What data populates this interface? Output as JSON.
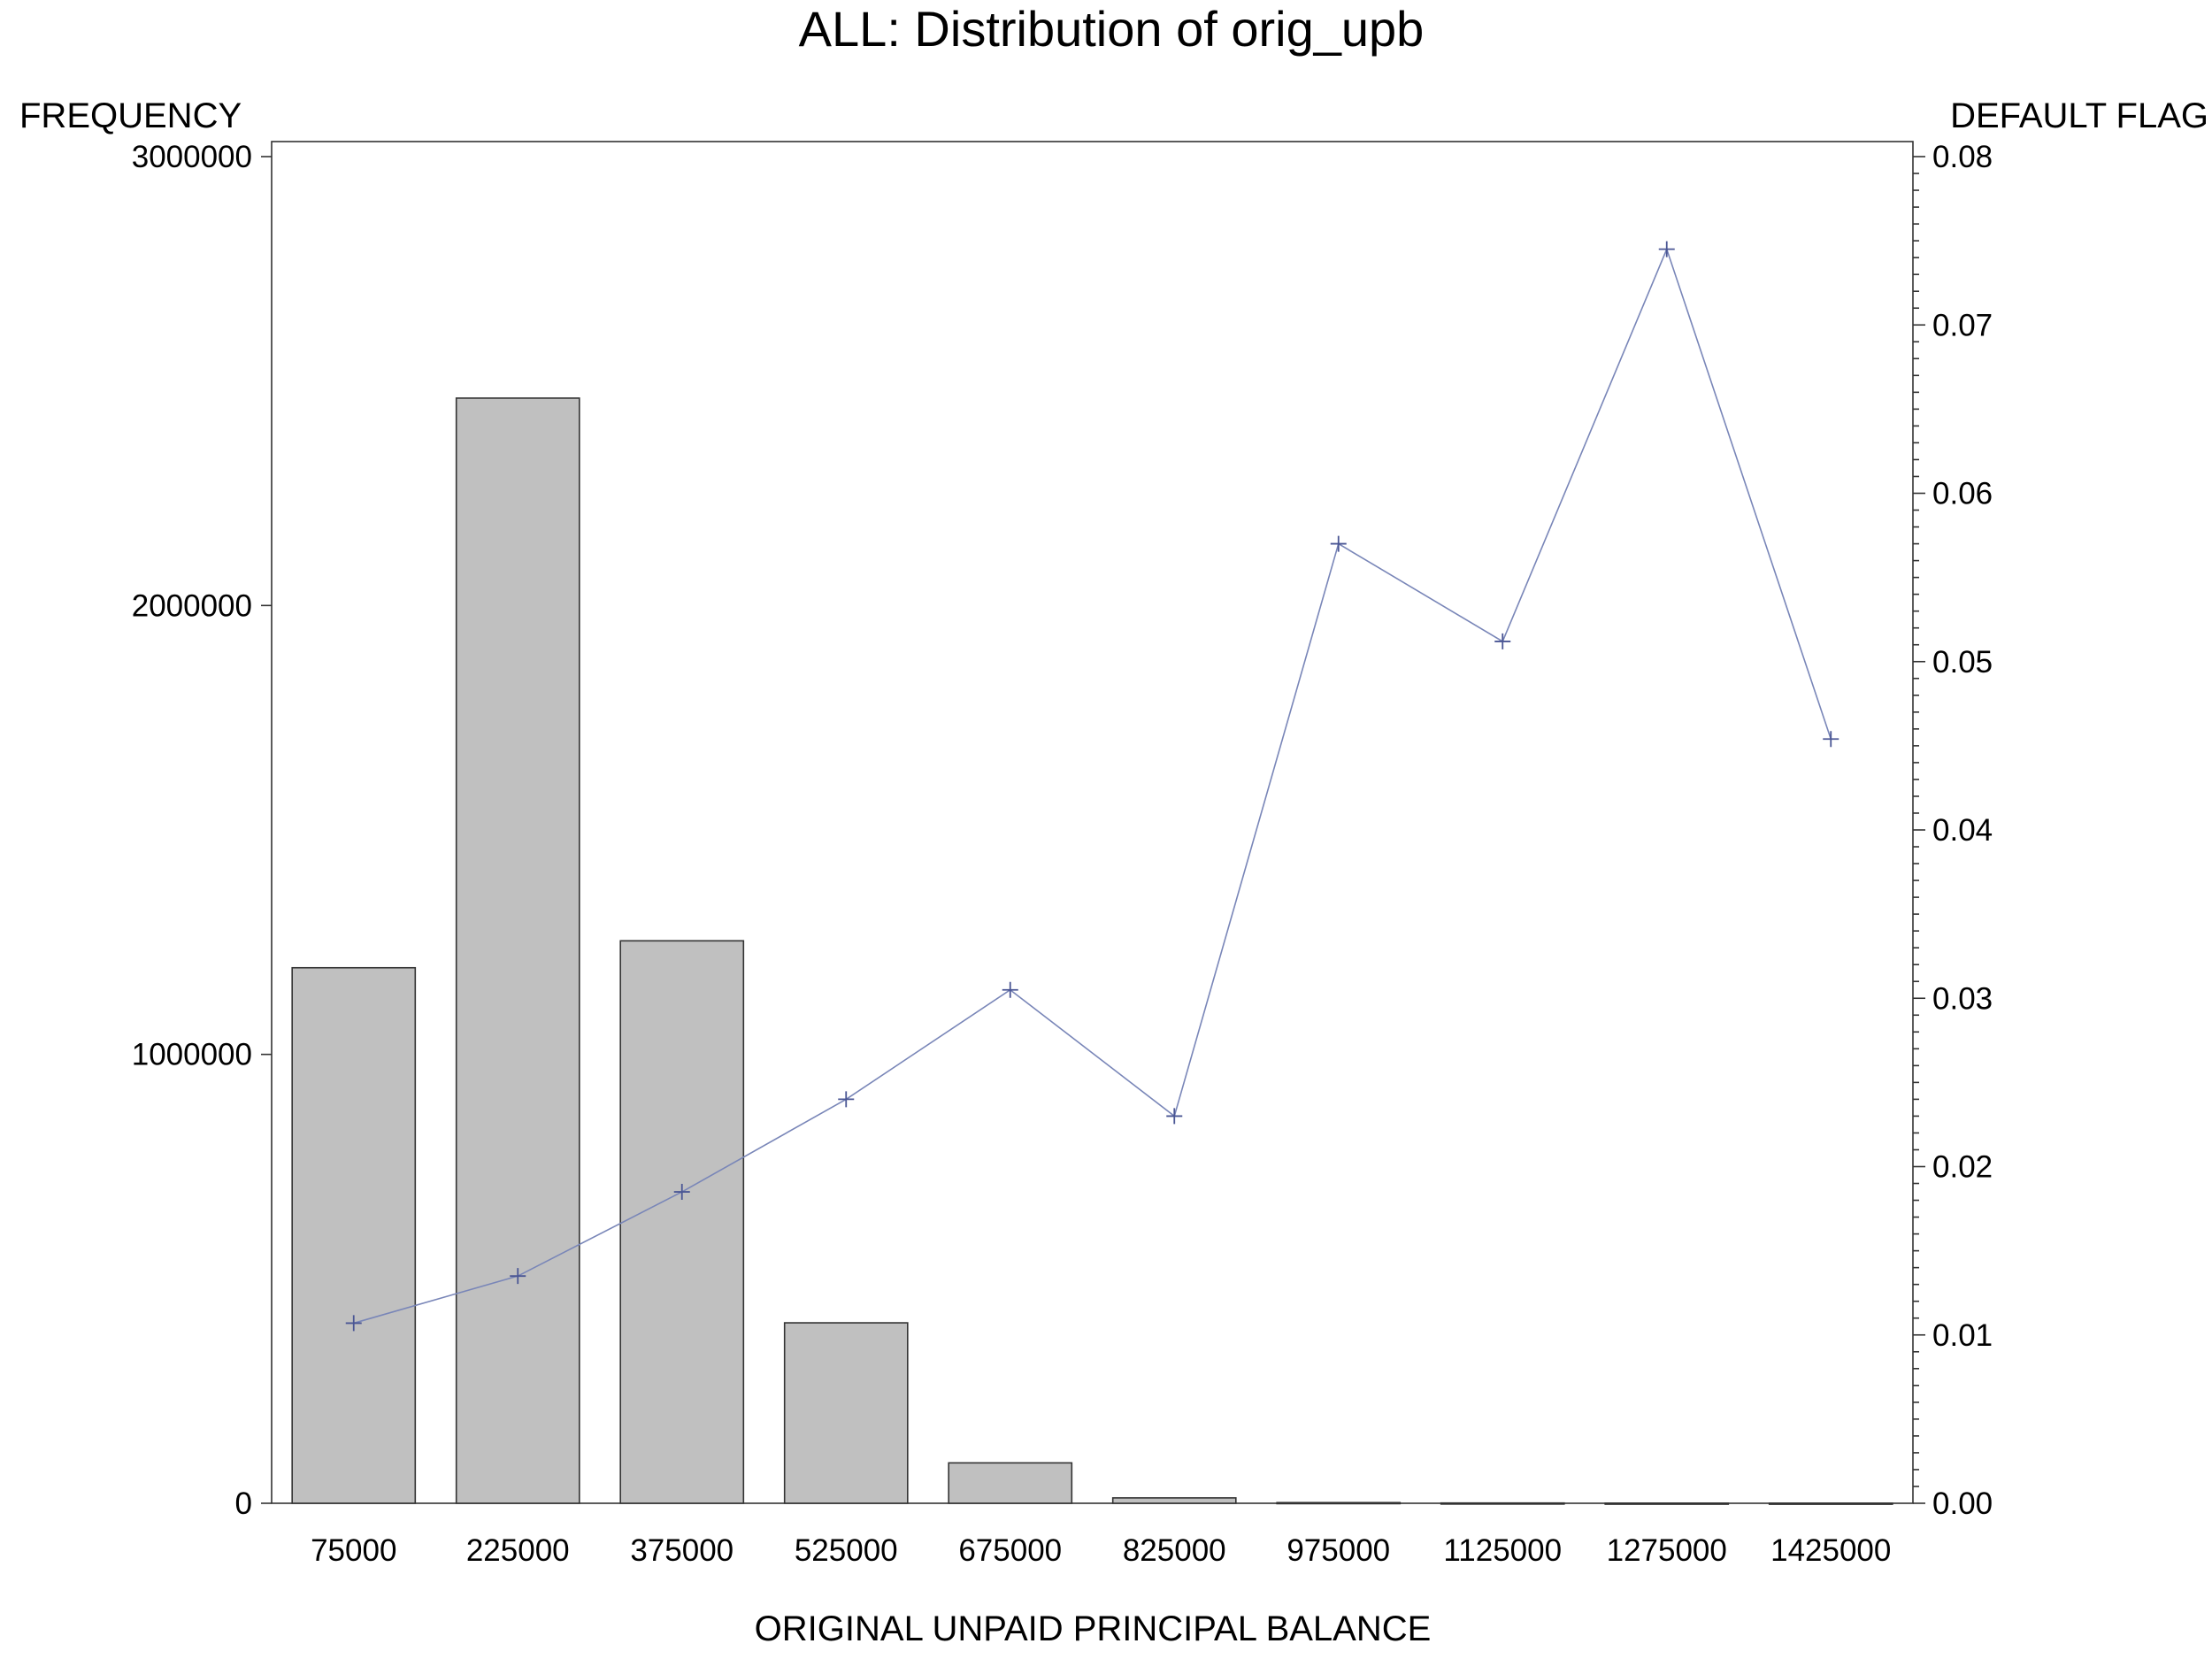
{
  "chart_data": {
    "type": "bar",
    "title": "ALL: Distribution of orig_upb",
    "xlabel": "ORIGINAL UNPAID PRINCIPAL BALANCE",
    "ylabel": "FREQUENCY",
    "y2label": "DEFAULT FLAG",
    "categories": [
      "75000",
      "225000",
      "375000",
      "525000",
      "675000",
      "825000",
      "975000",
      "1125000",
      "1275000",
      "1425000"
    ],
    "ylim": [
      0,
      3000000
    ],
    "y_ticks": [
      "0",
      "1000000",
      "2000000",
      "3000000"
    ],
    "y2lim": [
      0,
      0.08
    ],
    "y2_ticks": [
      "0.00",
      "0.01",
      "0.02",
      "0.03",
      "0.04",
      "0.05",
      "0.06",
      "0.07",
      "0.08"
    ],
    "series": [
      {
        "type": "bar",
        "axis": "left",
        "values": [
          1193000,
          2462000,
          1253000,
          402000,
          90000,
          12000,
          1500,
          600,
          300,
          200
        ]
      },
      {
        "type": "line",
        "axis": "right",
        "marker": "plus",
        "values": [
          0.0107,
          0.0135,
          0.0185,
          0.024,
          0.0305,
          0.023,
          0.057,
          0.0512,
          0.0745,
          0.0454
        ]
      }
    ],
    "colors": {
      "bar_fill": "#c0c0c0",
      "bar_stroke": "#333333",
      "line": "#7986b8",
      "marker": "#4a5694"
    },
    "grid": false,
    "legend": "none"
  }
}
